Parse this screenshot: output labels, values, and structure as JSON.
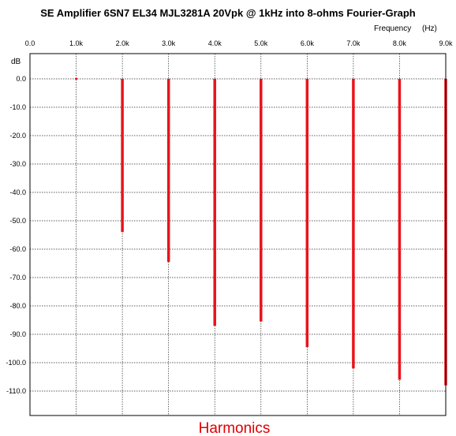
{
  "chart_data": {
    "type": "bar",
    "title": "SE Amplifier 6SN7 EL34 MJL3281A 20Vpk @ 1kHz into 8-ohms Fourier-Graph",
    "frequency_axis_label": "Frequency",
    "frequency_axis_unit": "(Hz)",
    "ylabel": "dB",
    "xlabel": "Harmonics",
    "x_ticks": [
      "0.0",
      "1.0k",
      "2.0k",
      "3.0k",
      "4.0k",
      "5.0k",
      "6.0k",
      "7.0k",
      "8.0k",
      "9.0k"
    ],
    "y_ticks": [
      "0.0",
      "-10.0",
      "-20.0",
      "-30.0",
      "-40.0",
      "-50.0",
      "-60.0",
      "-70.0",
      "-80.0",
      "-90.0",
      "-100.0",
      "-110.0"
    ],
    "xlim": [
      0,
      9000
    ],
    "ylim": [
      -118,
      0
    ],
    "grid": true,
    "bar_color": "#e8141b",
    "series": [
      {
        "x": [
          1000,
          2000,
          3000,
          4000,
          5000,
          6000,
          7000,
          8000,
          9000
        ],
        "values": [
          0.0,
          -54.0,
          -64.5,
          -87.0,
          -85.5,
          -94.5,
          -102.0,
          -106.0,
          -108.0
        ]
      }
    ]
  }
}
